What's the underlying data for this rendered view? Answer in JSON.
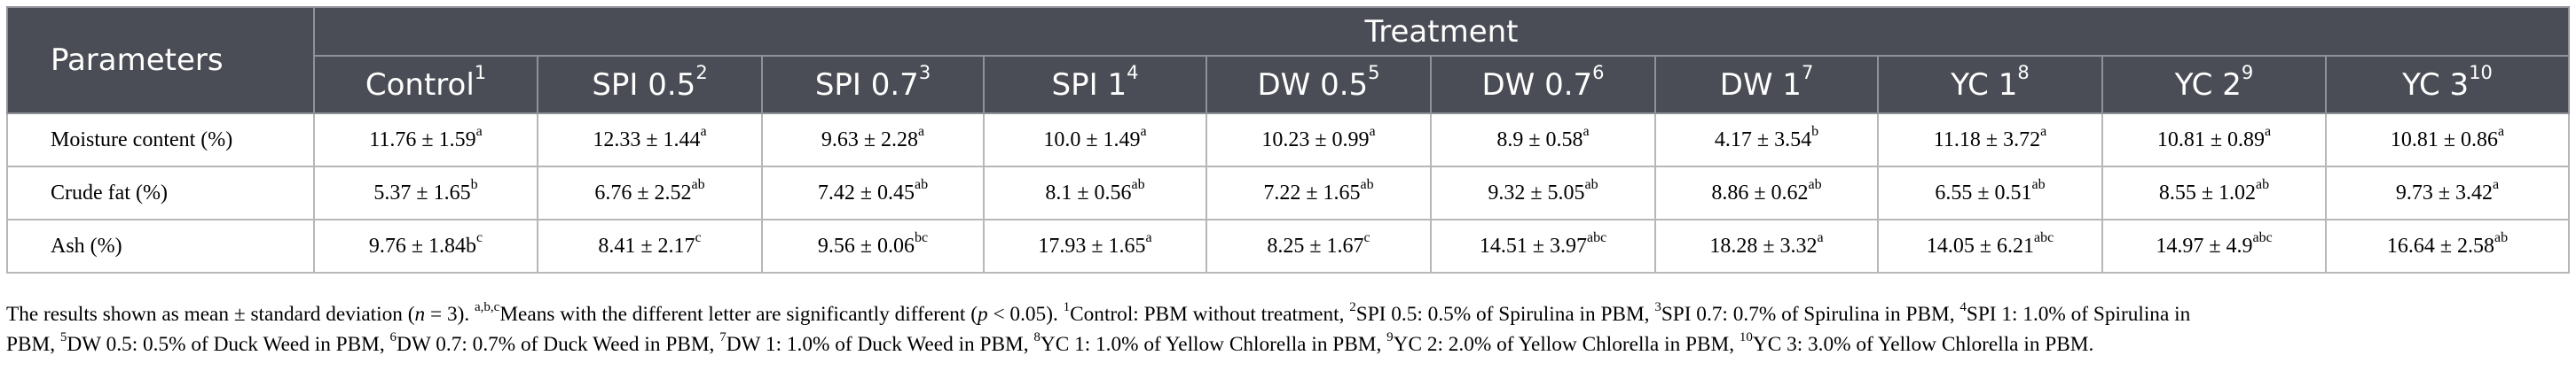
{
  "table": {
    "header_parameters": "Parameters",
    "header_treatment": "Treatment",
    "columns": [
      {
        "label": "Control",
        "sup": "1"
      },
      {
        "label": "SPI 0.5",
        "sup": "2"
      },
      {
        "label": "SPI 0.7",
        "sup": "3"
      },
      {
        "label": "SPI 1",
        "sup": "4"
      },
      {
        "label": "DW 0.5",
        "sup": "5"
      },
      {
        "label": "DW 0.7",
        "sup": "6"
      },
      {
        "label": "DW 1",
        "sup": "7"
      },
      {
        "label": "YC 1",
        "sup": "8"
      },
      {
        "label": "YC 2",
        "sup": "9"
      },
      {
        "label": "YC 3",
        "sup": "10"
      }
    ],
    "rows": [
      {
        "label": "Moisture content (%)",
        "cells": [
          {
            "value": "11.76 ± 1.59",
            "sup": "a"
          },
          {
            "value": "12.33 ± 1.44",
            "sup": "a"
          },
          {
            "value": "9.63 ± 2.28",
            "sup": "a"
          },
          {
            "value": "10.0 ± 1.49",
            "sup": "a"
          },
          {
            "value": "10.23 ± 0.99",
            "sup": "a"
          },
          {
            "value": "8.9 ± 0.58",
            "sup": "a"
          },
          {
            "value": "4.17 ± 3.54",
            "sup": "b"
          },
          {
            "value": "11.18 ± 3.72",
            "sup": "a"
          },
          {
            "value": "10.81 ± 0.89",
            "sup": "a"
          },
          {
            "value": "10.81 ± 0.86",
            "sup": "a"
          }
        ]
      },
      {
        "label": "Crude fat (%)",
        "cells": [
          {
            "value": "5.37 ± 1.65",
            "sup": "b"
          },
          {
            "value": "6.76 ± 2.52",
            "sup": "ab"
          },
          {
            "value": "7.42 ± 0.45",
            "sup": "ab"
          },
          {
            "value": "8.1 ± 0.56",
            "sup": "ab"
          },
          {
            "value": "7.22 ± 1.65",
            "sup": "ab"
          },
          {
            "value": "9.32 ± 5.05",
            "sup": "ab"
          },
          {
            "value": "8.86 ± 0.62",
            "sup": "ab"
          },
          {
            "value": "6.55 ± 0.51",
            "sup": "ab"
          },
          {
            "value": "8.55 ± 1.02",
            "sup": "ab"
          },
          {
            "value": "9.73 ± 3.42",
            "sup": "a"
          }
        ]
      },
      {
        "label": "Ash (%)",
        "cells": [
          {
            "value": "9.76 ± 1.84b",
            "sup": "c"
          },
          {
            "value": "8.41 ± 2.17",
            "sup": "c"
          },
          {
            "value": "9.56 ± 0.06",
            "sup": "bc"
          },
          {
            "value": "17.93 ± 1.65",
            "sup": "a"
          },
          {
            "value": "8.25 ± 1.67",
            "sup": "c"
          },
          {
            "value": "14.51 ± 3.97",
            "sup": "abc"
          },
          {
            "value": "18.28 ± 3.32",
            "sup": "a"
          },
          {
            "value": "14.05 ± 6.21",
            "sup": "abc"
          },
          {
            "value": "14.97 ± 4.9",
            "sup": "abc"
          },
          {
            "value": "16.64 ± 2.58",
            "sup": "ab"
          }
        ]
      }
    ]
  },
  "footnote": {
    "line1": [
      {
        "t": "The results shown as mean ± standard deviation (",
        "sup": false
      },
      {
        "t": "n",
        "sup": false,
        "i": true
      },
      {
        "t": " = 3). ",
        "sup": false
      },
      {
        "t": "a,b,c",
        "sup": true
      },
      {
        "t": "Means with the different letter are significantly different (",
        "sup": false
      },
      {
        "t": "p",
        "sup": false,
        "i": true
      },
      {
        "t": " < 0.05). ",
        "sup": false
      },
      {
        "t": "1",
        "sup": true
      },
      {
        "t": "Control: PBM without treatment, ",
        "sup": false
      },
      {
        "t": "2",
        "sup": true
      },
      {
        "t": "SPI 0.5: 0.5% of Spirulina in PBM, ",
        "sup": false
      },
      {
        "t": "3",
        "sup": true
      },
      {
        "t": "SPI 0.7: 0.7% of Spirulina in PBM, ",
        "sup": false
      },
      {
        "t": "4",
        "sup": true
      },
      {
        "t": "SPI 1: 1.0% of Spirulina in",
        "sup": false
      }
    ],
    "line2": [
      {
        "t": "PBM, ",
        "sup": false
      },
      {
        "t": "5",
        "sup": true
      },
      {
        "t": "DW 0.5: 0.5% of Duck Weed in PBM, ",
        "sup": false
      },
      {
        "t": "6",
        "sup": true
      },
      {
        "t": "DW 0.7: 0.7% of Duck Weed in PBM, ",
        "sup": false
      },
      {
        "t": "7",
        "sup": true
      },
      {
        "t": "DW 1: 1.0% of Duck Weed in PBM, ",
        "sup": false
      },
      {
        "t": "8",
        "sup": true
      },
      {
        "t": "YC 1: 1.0% of Yellow Chlorella in PBM, ",
        "sup": false
      },
      {
        "t": "9",
        "sup": true
      },
      {
        "t": "YC 2: 2.0% of Yellow Chlorella in PBM, ",
        "sup": false
      },
      {
        "t": "10",
        "sup": true
      },
      {
        "t": "YC 3: 3.0% of Yellow Chlorella in PBM.",
        "sup": false
      }
    ]
  },
  "colors": {
    "header_bg": "#4a4d55",
    "header_text": "#ffffff",
    "border": "#b7b7b7"
  }
}
